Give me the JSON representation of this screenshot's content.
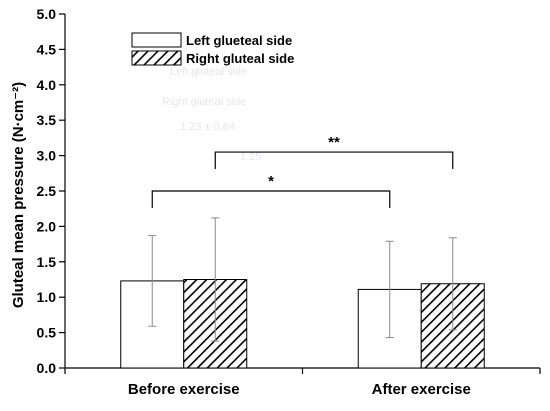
{
  "chart_data": {
    "type": "bar",
    "categories": [
      "Before exercise",
      "After exercise"
    ],
    "series": [
      {
        "name": "Left glueteal side",
        "pattern": "solid-white",
        "values": [
          1.23,
          1.11
        ],
        "error": [
          0.64,
          0.68
        ]
      },
      {
        "name": "Right gluteal side",
        "pattern": "diagonal-hatch",
        "values": [
          1.25,
          1.19
        ],
        "error": [
          0.87,
          0.65
        ]
      }
    ],
    "ylabel": "Gluteal mean pressure (N·cm⁻²)",
    "xlabel": "",
    "ylim": [
      0,
      5
    ],
    "yticks": [
      "0.0",
      "0.5",
      "1.0",
      "1.5",
      "2.0",
      "2.5",
      "3.0",
      "3.5",
      "4.0",
      "4.5",
      "5.0"
    ],
    "grid": false,
    "legend_position": "top-left",
    "significance": [
      {
        "label": "**",
        "from": "Before exercise / Right gluteal side",
        "to": "After exercise / Right gluteal side",
        "level": 3.05
      },
      {
        "label": "*",
        "from": "Before exercise / Left glueteal side",
        "to": "After exercise / Left glueteal side",
        "level": 2.5
      }
    ],
    "colors": {
      "bar_fill": "#ffffff",
      "bar_stroke": "#000000",
      "hatch": "#000000",
      "axis": "#000000"
    }
  }
}
